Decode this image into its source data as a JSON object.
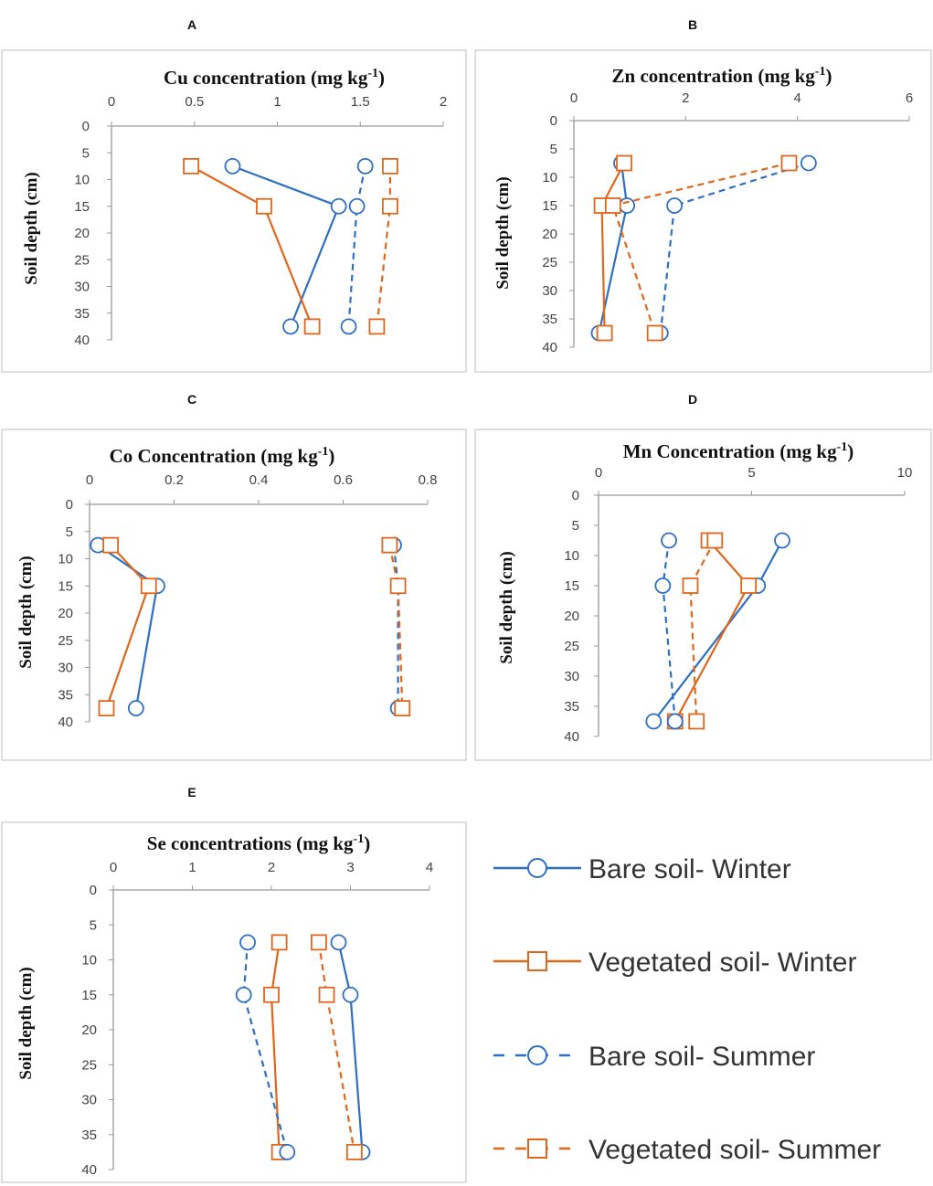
{
  "colors": {
    "bare": "#2e6fc4",
    "vegetated": "#e0661c",
    "axis": "#999999",
    "frame": "#c9c9c9"
  },
  "chart_data": [
    {
      "panel": "A",
      "type": "line",
      "title": "Cu concentration (mg kg",
      "title_sup": "-1",
      "title_end": ")",
      "ylabel": "Soil depth (cm)",
      "xlim": [
        0,
        2
      ],
      "xticks": [
        "0",
        "0.5",
        "1",
        "1.5",
        "2"
      ],
      "ylim": [
        0,
        40
      ],
      "yticks": [
        "0",
        "5",
        "10",
        "15",
        "20",
        "25",
        "30",
        "35",
        "40"
      ],
      "depths": [
        7.5,
        15,
        37.5
      ],
      "series": [
        {
          "name": "Bare soil- Winter",
          "values": [
            0.73,
            1.37,
            1.08
          ]
        },
        {
          "name": "Vegetated soil- Winter",
          "values": [
            0.48,
            0.92,
            1.21
          ]
        },
        {
          "name": "Bare soil- Summer",
          "values": [
            1.53,
            1.48,
            1.43
          ]
        },
        {
          "name": "Vegetated soil- Summer",
          "values": [
            1.68,
            1.68,
            1.6
          ]
        }
      ]
    },
    {
      "panel": "B",
      "type": "line",
      "title": "Zn concentration (mg kg",
      "title_sup": "-1",
      "title_end": ")",
      "ylabel": "Soil depth (cm)",
      "xlim": [
        0,
        6
      ],
      "xticks": [
        "0",
        "2",
        "4",
        "6"
      ],
      "ylim": [
        0,
        40
      ],
      "yticks": [
        "0",
        "5",
        "10",
        "15",
        "20",
        "25",
        "30",
        "35",
        "40"
      ],
      "depths": [
        7.5,
        15,
        37.5
      ],
      "series": [
        {
          "name": "Bare soil- Winter",
          "values": [
            0.85,
            0.95,
            0.45
          ]
        },
        {
          "name": "Vegetated soil- Winter",
          "values": [
            0.9,
            0.5,
            0.55
          ]
        },
        {
          "name": "Bare soil- Summer",
          "values": [
            4.2,
            1.8,
            1.55
          ]
        },
        {
          "name": "Vegetated soil- Summer",
          "values": [
            3.85,
            0.7,
            1.45
          ]
        }
      ]
    },
    {
      "panel": "C",
      "type": "line",
      "title": "Co Concentration (mg kg",
      "title_sup": "-1",
      "title_end": ")",
      "ylabel": "Soil depth (cm)",
      "xlim": [
        0,
        0.8
      ],
      "xticks": [
        "0",
        "0.2",
        "0.4",
        "0.6",
        "0.8"
      ],
      "ylim": [
        0,
        40
      ],
      "yticks": [
        "0",
        "5",
        "10",
        "15",
        "20",
        "25",
        "30",
        "35",
        "40"
      ],
      "depths": [
        7.5,
        15,
        37.5
      ],
      "series": [
        {
          "name": "Bare soil- Winter",
          "values": [
            0.02,
            0.16,
            0.11
          ]
        },
        {
          "name": "Vegetated soil- Winter",
          "values": [
            0.05,
            0.14,
            0.04
          ]
        },
        {
          "name": "Bare soil- Summer",
          "values": [
            0.72,
            0.73,
            0.73
          ]
        },
        {
          "name": "Vegetated soil- Summer",
          "values": [
            0.71,
            0.73,
            0.74
          ]
        }
      ]
    },
    {
      "panel": "D",
      "type": "line",
      "title": "Mn Concentration (mg kg",
      "title_sup": "-1",
      "title_end": ")",
      "ylabel": "Soil depth (cm)",
      "xlim": [
        0,
        10
      ],
      "xticks": [
        "0",
        "5",
        "10"
      ],
      "ylim": [
        0,
        40
      ],
      "yticks": [
        "0",
        "5",
        "10",
        "15",
        "20",
        "25",
        "30",
        "35",
        "40"
      ],
      "depths": [
        7.5,
        15,
        37.5
      ],
      "series": [
        {
          "name": "Bare soil- Winter",
          "values": [
            6.0,
            5.2,
            1.8
          ]
        },
        {
          "name": "Vegetated soil- Winter",
          "values": [
            3.6,
            4.9,
            2.5
          ]
        },
        {
          "name": "Bare soil- Summer",
          "values": [
            2.3,
            2.1,
            2.5
          ]
        },
        {
          "name": "Vegetated soil- Summer",
          "values": [
            3.8,
            3.0,
            3.2
          ]
        }
      ]
    },
    {
      "panel": "E",
      "type": "line",
      "title": "Se  concentrations (mg kg",
      "title_sup": "-1",
      "title_end": ")",
      "ylabel": "Soil depth (cm)",
      "xlim": [
        0,
        4
      ],
      "xticks": [
        "0",
        "1",
        "2",
        "3",
        "4"
      ],
      "ylim": [
        0,
        40
      ],
      "yticks": [
        "0",
        "5",
        "10",
        "15",
        "20",
        "25",
        "30",
        "35",
        "40"
      ],
      "depths": [
        7.5,
        15,
        37.5
      ],
      "series": [
        {
          "name": "Bare soil- Winter",
          "values": [
            2.85,
            3.0,
            3.15
          ]
        },
        {
          "name": "Vegetated soil- Winter",
          "values": [
            2.1,
            2.0,
            2.1
          ]
        },
        {
          "name": "Bare soil- Summer",
          "values": [
            1.7,
            1.65,
            2.2
          ]
        },
        {
          "name": "Vegetated soil- Summer",
          "values": [
            2.6,
            2.7,
            3.05
          ]
        }
      ]
    }
  ],
  "legend": [
    {
      "label": "Bare soil- Winter",
      "color": "bare",
      "marker": "circle",
      "dashed": false
    },
    {
      "label": "Vegetated soil- Winter",
      "color": "vegetated",
      "marker": "square",
      "dashed": false
    },
    {
      "label": "Bare soil- Summer",
      "color": "bare",
      "marker": "circle",
      "dashed": true
    },
    {
      "label": "Vegetated soil- Summer",
      "color": "vegetated",
      "marker": "square",
      "dashed": true
    }
  ]
}
